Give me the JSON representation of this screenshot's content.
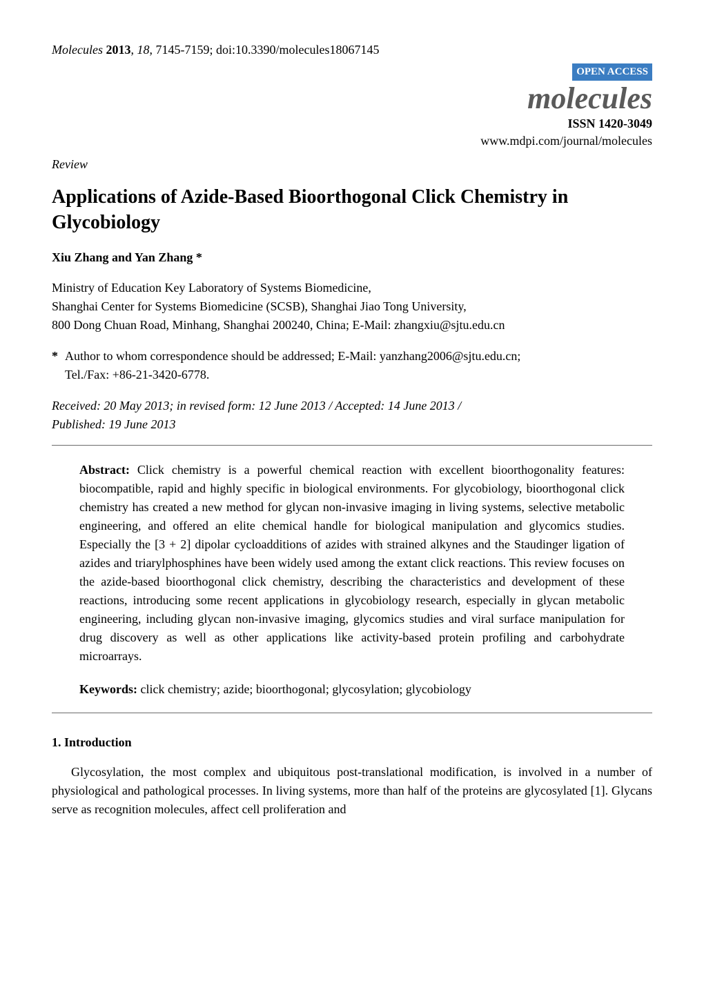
{
  "header": {
    "journal_name": "Molecules",
    "year": "2013",
    "volume": "18",
    "pages": "7145-7159",
    "doi": "doi:10.3390/molecules18067145",
    "open_access_label": "OPEN ACCESS",
    "open_access_bg": "#3b7dc2",
    "open_access_fg": "#ffffff",
    "journal_logo": "molecules",
    "journal_logo_color": "#5a5a5a",
    "issn": "ISSN 1420-3049",
    "journal_url": "www.mdpi.com/journal/molecules"
  },
  "article": {
    "type": "Review",
    "title": "Applications of Azide-Based Bioorthogonal Click Chemistry in Glycobiology",
    "authors": "Xiu Zhang and Yan Zhang *",
    "affiliation_line1": "Ministry of Education Key Laboratory of Systems Biomedicine,",
    "affiliation_line2": "Shanghai Center for Systems Biomedicine (SCSB), Shanghai Jiao Tong University,",
    "affiliation_line3": "800 Dong Chuan Road, Minhang, Shanghai 200240, China; E-Mail: zhangxiu@sjtu.edu.cn",
    "corresponding_star": "*",
    "corresponding_line1": "Author to whom correspondence should be addressed; E-Mail: yanzhang2006@sjtu.edu.cn;",
    "corresponding_line2": "Tel./Fax: +86-21-3420-6778.",
    "dates_line1": "Received: 20 May 2013; in revised form: 12 June 2013 / Accepted: 14 June 2013 /",
    "dates_line2": "Published: 19 June 2013"
  },
  "abstract": {
    "label": "Abstract:",
    "text": " Click chemistry is a powerful chemical reaction with excellent bioorthogonality features: biocompatible, rapid and highly specific in biological environments. For glycobiology, bioorthogonal click chemistry has created a new method for glycan non-invasive imaging in living systems, selective metabolic engineering, and offered an elite chemical handle for biological manipulation and glycomics studies. Especially the [3 + 2] dipolar cycloadditions of azides with strained alkynes and the Staudinger ligation of azides and triarylphosphines have been widely used among the extant click reactions. This review focuses on the azide-based bioorthogonal click chemistry, describing the characteristics and development of these reactions, introducing some recent applications in glycobiology research, especially in glycan metabolic engineering, including glycan non-invasive imaging, glycomics studies and viral surface manipulation for drug discovery as well as other applications like activity-based protein profiling and carbohydrate microarrays."
  },
  "keywords": {
    "label": "Keywords:",
    "text": " click chemistry; azide; bioorthogonal; glycosylation; glycobiology"
  },
  "sections": {
    "intro_heading": "1. Introduction",
    "intro_para": "Glycosylation, the most complex and ubiquitous post-translational modification, is involved in a number of physiological and pathological processes. In living systems, more than half of the proteins are glycosylated [1]. Glycans serve as recognition molecules, affect cell proliferation and"
  }
}
